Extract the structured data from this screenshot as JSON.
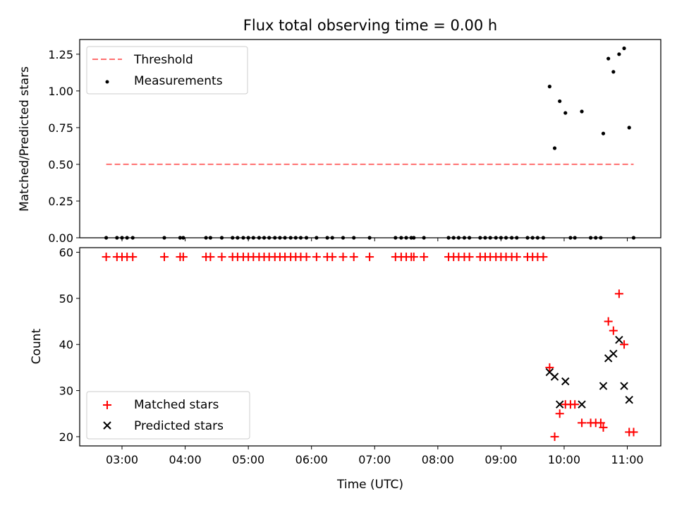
{
  "title": "Flux total observing time = 0.00 h",
  "chart_data": [
    {
      "type": "scatter",
      "ylabel": "Matched/Predicted stars",
      "xlabel": "",
      "x_unit": "hours UTC",
      "xlim": [
        2.33,
        11.53
      ],
      "ylim": [
        0,
        1.35
      ],
      "yticks": [
        "0.00",
        "0.25",
        "0.50",
        "0.75",
        "1.00",
        "1.25"
      ],
      "legend_position": "upper-left",
      "series": [
        {
          "name": "Threshold",
          "style": "dashed-line",
          "color": "#ff7070",
          "x": [
            2.75,
            11.1
          ],
          "y": [
            0.5,
            0.5
          ]
        },
        {
          "name": "Measurements",
          "style": "dots",
          "color": "#000000",
          "x": [
            2.75,
            2.92,
            3.0,
            3.08,
            3.17,
            3.67,
            3.92,
            3.97,
            4.33,
            4.4,
            4.58,
            4.75,
            4.83,
            4.92,
            5.0,
            5.08,
            5.17,
            5.25,
            5.33,
            5.42,
            5.5,
            5.58,
            5.67,
            5.75,
            5.83,
            5.92,
            6.08,
            6.25,
            6.33,
            6.5,
            6.67,
            6.92,
            7.33,
            7.42,
            7.5,
            7.58,
            7.62,
            7.78,
            8.17,
            8.25,
            8.33,
            8.42,
            8.5,
            8.67,
            8.75,
            8.83,
            8.92,
            9.0,
            9.08,
            9.17,
            9.25,
            9.42,
            9.5,
            9.58,
            9.67,
            9.77,
            9.85,
            9.93,
            10.02,
            10.1,
            10.17,
            10.28,
            10.42,
            10.5,
            10.58,
            10.62,
            10.7,
            10.78,
            10.87,
            10.95,
            11.03,
            11.1
          ],
          "y": [
            0,
            0,
            0,
            0,
            0,
            0,
            0,
            0,
            0,
            0,
            0,
            0,
            0,
            0,
            0,
            0,
            0,
            0,
            0,
            0,
            0,
            0,
            0,
            0,
            0,
            0,
            0,
            0,
            0,
            0,
            0,
            0,
            0,
            0,
            0,
            0,
            0,
            0,
            0,
            0,
            0,
            0,
            0,
            0,
            0,
            0,
            0,
            0,
            0,
            0,
            0,
            0,
            0,
            0,
            0,
            1.03,
            0.61,
            0.93,
            0.85,
            0,
            0,
            0.86,
            0,
            0,
            0,
            0.71,
            1.22,
            1.13,
            1.25,
            1.29,
            0.75,
            0
          ]
        }
      ]
    },
    {
      "type": "scatter",
      "ylabel": "Count",
      "xlabel": "Time (UTC)",
      "x_unit": "hours UTC",
      "xlim": [
        2.33,
        11.53
      ],
      "ylim": [
        18,
        61
      ],
      "yticks": [
        "20",
        "30",
        "40",
        "50",
        "60"
      ],
      "xticks": [
        {
          "value": 3,
          "label": "03:00"
        },
        {
          "value": 4,
          "label": "04:00"
        },
        {
          "value": 5,
          "label": "05:00"
        },
        {
          "value": 6,
          "label": "06:00"
        },
        {
          "value": 7,
          "label": "07:00"
        },
        {
          "value": 8,
          "label": "08:00"
        },
        {
          "value": 9,
          "label": "09:00"
        },
        {
          "value": 10,
          "label": "10:00"
        },
        {
          "value": 11,
          "label": "11:00"
        }
      ],
      "legend_position": "lower-left",
      "series": [
        {
          "name": "Matched stars",
          "marker": "plus",
          "color": "#ff0000",
          "x": [
            2.75,
            2.92,
            3.0,
            3.08,
            3.17,
            3.67,
            3.92,
            3.97,
            4.33,
            4.4,
            4.58,
            4.75,
            4.83,
            4.92,
            5.0,
            5.08,
            5.17,
            5.25,
            5.33,
            5.42,
            5.5,
            5.58,
            5.67,
            5.75,
            5.83,
            5.92,
            6.08,
            6.25,
            6.33,
            6.5,
            6.67,
            6.92,
            7.33,
            7.42,
            7.5,
            7.58,
            7.62,
            7.78,
            8.17,
            8.25,
            8.33,
            8.42,
            8.5,
            8.67,
            8.75,
            8.83,
            8.92,
            9.0,
            9.08,
            9.17,
            9.25,
            9.42,
            9.5,
            9.58,
            9.67,
            9.77,
            9.85,
            9.93,
            10.02,
            10.1,
            10.17,
            10.28,
            10.42,
            10.5,
            10.58,
            10.62,
            10.7,
            10.78,
            10.87,
            10.95,
            11.03,
            11.1
          ],
          "y": [
            59,
            59,
            59,
            59,
            59,
            59,
            59,
            59,
            59,
            59,
            59,
            59,
            59,
            59,
            59,
            59,
            59,
            59,
            59,
            59,
            59,
            59,
            59,
            59,
            59,
            59,
            59,
            59,
            59,
            59,
            59,
            59,
            59,
            59,
            59,
            59,
            59,
            59,
            59,
            59,
            59,
            59,
            59,
            59,
            59,
            59,
            59,
            59,
            59,
            59,
            59,
            59,
            59,
            59,
            59,
            35,
            20,
            25,
            27,
            27,
            27,
            23,
            23,
            23,
            23,
            22,
            45,
            43,
            51,
            40,
            21,
            21
          ]
        },
        {
          "name": "Predicted stars",
          "marker": "x",
          "color": "#000000",
          "x": [
            9.77,
            9.85,
            9.93,
            10.02,
            10.28,
            10.62,
            10.7,
            10.78,
            10.87,
            10.95,
            11.03
          ],
          "y": [
            34,
            33,
            27,
            32,
            27,
            31,
            37,
            38,
            41,
            31,
            28
          ]
        }
      ]
    }
  ]
}
